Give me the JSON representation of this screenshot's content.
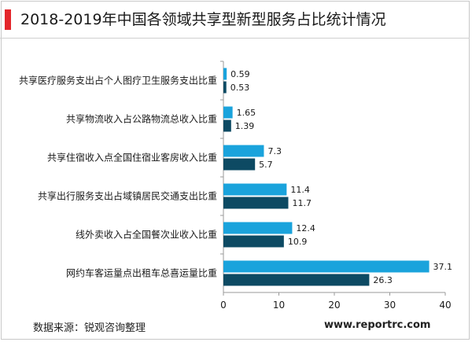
{
  "header": {
    "title": "2018-2019年中国各领域共享型新型服务占比统计情况"
  },
  "footer": {
    "source": "数据来源：锐观咨询整理",
    "website": "www.reportrc.com"
  },
  "colors": {
    "series_2018": "#1aa3dc",
    "series_2019": "#0d4a63",
    "accent": "#e3262b"
  },
  "chart_data": {
    "type": "bar",
    "orientation": "horizontal",
    "title": "2018-2019年中国各领域共享型新型服务占比统计情况",
    "categories": [
      "共享医疗服务支出占个人图疗卫生服务支出比重",
      "共享物流收入占公路物流总收入比重",
      "共享住宿收入点全国住宿业客房收入比重",
      "共享出行服务支出占域镇居民交通支出比重",
      "线外卖收入占全国餐次业收入比重",
      "网约车客运量点出租车总喜运量比重"
    ],
    "series": [
      {
        "values": [
          0.59,
          1.65,
          7.3,
          11.4,
          12.4,
          37.1
        ]
      },
      {
        "values": [
          0.53,
          1.39,
          5.7,
          11.7,
          10.9,
          26.3
        ]
      }
    ],
    "xlim": [
      0,
      40
    ],
    "xticks": [
      0,
      10,
      20,
      30,
      40
    ],
    "grid": false,
    "legend": "none"
  }
}
